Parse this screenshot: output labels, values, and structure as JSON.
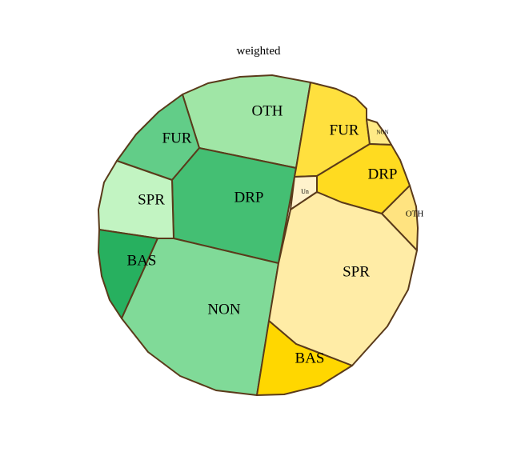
{
  "chart_data": {
    "type": "voronoi-treemap",
    "title": "weighted",
    "groups": [
      {
        "name": "green",
        "cells": [
          {
            "label": "OTH",
            "color": "#a0e6a6"
          },
          {
            "label": "FUR",
            "color": "#62cd88"
          },
          {
            "label": "DRP",
            "color": "#44bf73"
          },
          {
            "label": "SPR",
            "color": "#c2f4c2"
          },
          {
            "label": "BAS",
            "color": "#27b05f"
          },
          {
            "label": "NON",
            "color": "#80da98"
          }
        ]
      },
      {
        "name": "yellow",
        "cells": [
          {
            "label": "FUR",
            "color": "#ffe03e"
          },
          {
            "label": "NON",
            "color": "#ffea86"
          },
          {
            "label": "DRP",
            "color": "#ffdb20"
          },
          {
            "label": "Un",
            "color": "#fff2cc"
          },
          {
            "label": "OTH",
            "color": "#ffe380"
          },
          {
            "label": "SPR",
            "color": "#ffeca6"
          },
          {
            "label": "BAS",
            "color": "#ffd700"
          }
        ]
      }
    ]
  }
}
